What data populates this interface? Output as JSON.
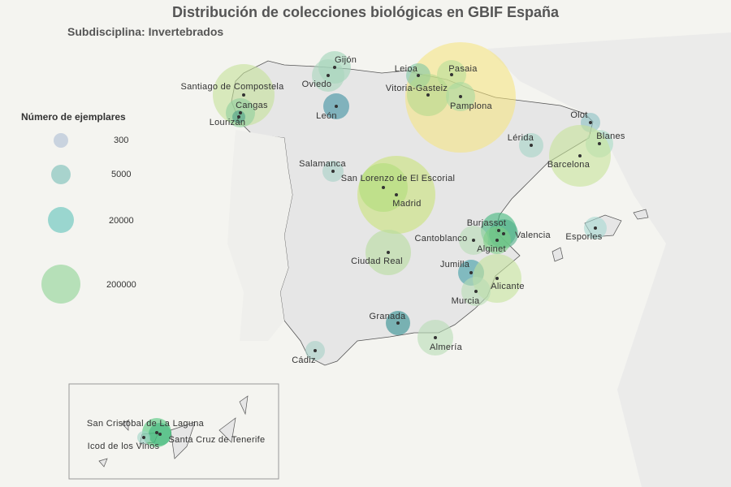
{
  "title": "Distribución de  colecciones biológicas  en GBIF España",
  "subtitle": "Subdisciplina: Invertebrados",
  "legend": {
    "title": "Número de ejemplares",
    "items": [
      {
        "label": "300",
        "color": "#c9d3df"
      },
      {
        "label": "5000",
        "color": "#a8d3cd"
      },
      {
        "label": "20000",
        "color": "#9ad6cf"
      },
      {
        "label": "200000",
        "color": "#b6e0b8"
      }
    ]
  },
  "cities": [
    "Gijón",
    "Oviedo",
    "Santiago de Compostela",
    "Cangas",
    "Lourizán",
    "León",
    "Leioa",
    "Pasaia",
    "Vitoria-Gasteiz",
    "Pamplona",
    "Olot",
    "Blanes",
    "Lérida",
    "Barcelona",
    "Salamanca",
    "San Lorenzo de El Escorial",
    "Madrid",
    "Burjassot",
    "Valencia",
    "Cantoblanco",
    "Alginet",
    "Esporles",
    "Ciudad Real",
    "Jumilla",
    "Alicante",
    "Murcia",
    "Granada",
    "Almería",
    "Cádiz",
    "San Cristóbal de La Laguna",
    "Santa Cruz de Tenerife",
    "Icod de los Vinos"
  ]
}
